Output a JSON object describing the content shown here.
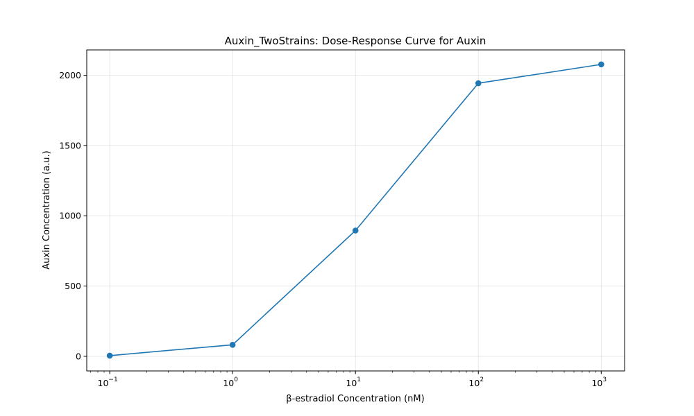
{
  "chart_data": {
    "type": "line",
    "title": "Auxin_TwoStrains: Dose-Response Curve for Auxin",
    "xlabel": "β-estradiol Concentration (nM)",
    "ylabel": "Auxin Concentration (a.u.)",
    "xscale": "log",
    "xlim": [
      0.065,
      1550
    ],
    "ylim": [
      -104,
      2180
    ],
    "grid": true,
    "x_ticks": [
      {
        "value": 0.1,
        "base": "10",
        "exp": "−1"
      },
      {
        "value": 1,
        "base": "10",
        "exp": "0"
      },
      {
        "value": 10,
        "base": "10",
        "exp": "1"
      },
      {
        "value": 100,
        "base": "10",
        "exp": "2"
      },
      {
        "value": 1000,
        "base": "10",
        "exp": "3"
      }
    ],
    "y_ticks": [
      {
        "value": 0,
        "label": "0"
      },
      {
        "value": 500,
        "label": "500"
      },
      {
        "value": 1000,
        "label": "1000"
      },
      {
        "value": 1500,
        "label": "1500"
      },
      {
        "value": 2000,
        "label": "2000"
      }
    ],
    "series": [
      {
        "color": "#1f77b4",
        "x": [
          0.1,
          1,
          10,
          100,
          1000
        ],
        "y": [
          5,
          82,
          895,
          1943,
          2077
        ]
      }
    ]
  }
}
